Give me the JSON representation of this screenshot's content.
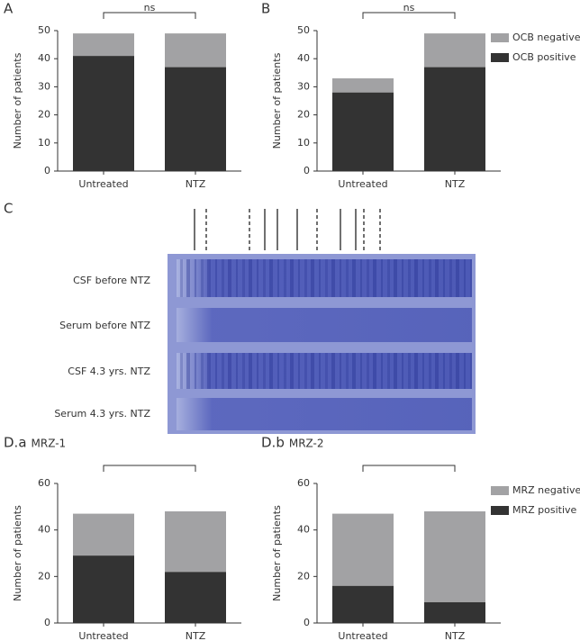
{
  "chart_data": [
    {
      "type": "stacked-bar",
      "panel": "A",
      "annotation": "ns",
      "ylabel": "Number of patients",
      "categories": [
        "Untreated",
        "NTZ"
      ],
      "series": [
        {
          "name": "OCB positive",
          "color": "#333333",
          "values": [
            41,
            37
          ]
        },
        {
          "name": "OCB negative",
          "color": "#a2a2a4",
          "values": [
            8,
            12
          ]
        }
      ],
      "ylim": [
        0,
        50
      ],
      "yticks": [
        0,
        10,
        20,
        30,
        40,
        50
      ],
      "legend": false
    },
    {
      "type": "stacked-bar",
      "panel": "B",
      "annotation": "ns",
      "ylabel": "Number of patients",
      "categories": [
        "Untreated",
        "NTZ"
      ],
      "series": [
        {
          "name": "OCB positive",
          "color": "#333333",
          "values": [
            28,
            37
          ]
        },
        {
          "name": "OCB negative",
          "color": "#a2a2a4",
          "values": [
            5,
            12
          ]
        }
      ],
      "ylim": [
        0,
        50
      ],
      "yticks": [
        0,
        10,
        20,
        30,
        40,
        50
      ],
      "legend": true
    },
    {
      "type": "stacked-bar",
      "panel": "D.a",
      "subtitle": "MRZ-1",
      "ylabel": "Number of patients",
      "categories": [
        "Untreated",
        "NTZ"
      ],
      "series": [
        {
          "name": "MRZ positive",
          "color": "#333333",
          "values": [
            29,
            22
          ]
        },
        {
          "name": "MRZ negative",
          "color": "#a2a2a4",
          "values": [
            18,
            26
          ]
        }
      ],
      "ylim": [
        0,
        60
      ],
      "yticks": [
        0,
        20,
        40,
        60
      ],
      "legend": false
    },
    {
      "type": "stacked-bar",
      "panel": "D.b",
      "subtitle": "MRZ-2",
      "ylabel": "Number of patients",
      "categories": [
        "Untreated",
        "NTZ"
      ],
      "series": [
        {
          "name": "MRZ positive",
          "color": "#333333",
          "values": [
            16,
            9
          ]
        },
        {
          "name": "MRZ negative",
          "color": "#a2a2a4",
          "values": [
            31,
            39
          ]
        }
      ],
      "ylim": [
        0,
        60
      ],
      "yticks": [
        0,
        20,
        40,
        60
      ],
      "legend": true
    }
  ],
  "gel": {
    "panel": "C",
    "lanes": [
      "CSF before NTZ",
      "Serum before NTZ",
      "CSF 4.3 yrs. NTZ",
      "Serum 4.3 yrs. NTZ"
    ]
  }
}
